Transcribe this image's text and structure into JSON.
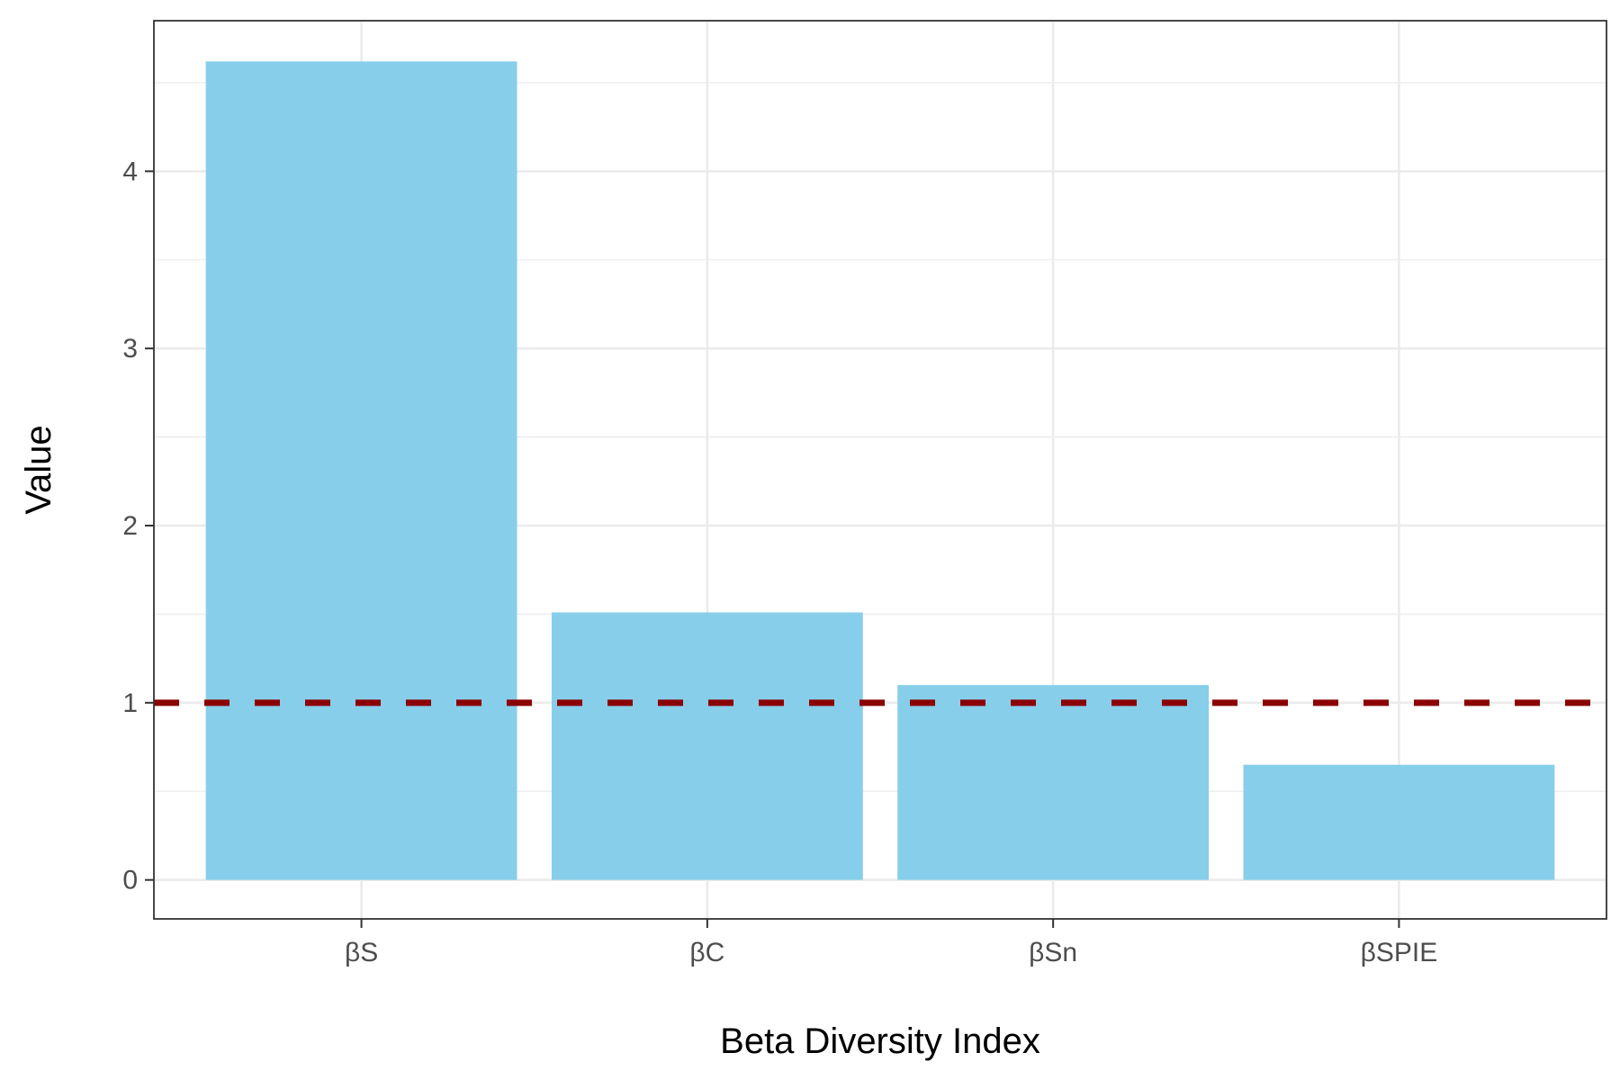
{
  "chart_data": {
    "type": "bar",
    "title": "",
    "xlabel": "Beta Diversity Index",
    "ylabel": "Value",
    "categories": [
      "βS",
      "βC",
      "βSn",
      "βSPIE"
    ],
    "values": [
      4.62,
      1.51,
      1.1,
      0.65
    ],
    "ylim": [
      -0.22,
      4.85
    ],
    "yticks": [
      0,
      1,
      2,
      3,
      4
    ],
    "yminor": [
      0.5,
      1.5,
      2.5,
      3.5,
      4.5
    ],
    "grid": true,
    "legend": "none",
    "bar_color": "#87CEEB",
    "reference_line": {
      "y": 1,
      "color": "#8B0000",
      "style": "dashed"
    }
  }
}
